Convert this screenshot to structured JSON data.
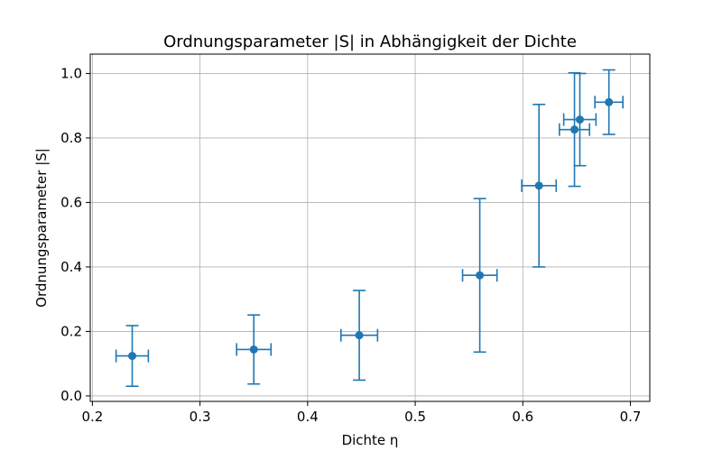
{
  "chart_data": {
    "type": "scatter",
    "title": "Ordnungsparameter |S| in Abhängigkeit der Dichte",
    "xlabel": "Dichte η",
    "ylabel": "Ordnungsparameter |S|",
    "xlim": [
      0.198,
      0.718
    ],
    "ylim": [
      -0.017,
      1.06
    ],
    "xticks": [
      0.2,
      0.3,
      0.4,
      0.5,
      0.6,
      0.7
    ],
    "yticks": [
      0.0,
      0.2,
      0.4,
      0.6,
      0.8,
      1.0
    ],
    "xtick_labels": [
      "0.2",
      "0.3",
      "0.4",
      "0.5",
      "0.6",
      "0.7"
    ],
    "ytick_labels": [
      "0.0",
      "0.2",
      "0.4",
      "0.6",
      "0.8",
      "1.0"
    ],
    "grid": true,
    "color": "#1f77b4",
    "points": [
      {
        "x": 0.237,
        "y": 0.124,
        "xerr": 0.015,
        "yerr": 0.094
      },
      {
        "x": 0.35,
        "y": 0.144,
        "xerr": 0.016,
        "yerr": 0.107
      },
      {
        "x": 0.448,
        "y": 0.188,
        "xerr": 0.017,
        "yerr": 0.139
      },
      {
        "x": 0.56,
        "y": 0.374,
        "xerr": 0.016,
        "yerr": 0.238
      },
      {
        "x": 0.615,
        "y": 0.652,
        "xerr": 0.016,
        "yerr": 0.252
      },
      {
        "x": 0.648,
        "y": 0.826,
        "xerr": 0.014,
        "yerr": 0.176
      },
      {
        "x": 0.653,
        "y": 0.857,
        "xerr": 0.015,
        "yerr": 0.143
      },
      {
        "x": 0.68,
        "y": 0.911,
        "xerr": 0.013,
        "yerr": 0.1
      }
    ]
  }
}
